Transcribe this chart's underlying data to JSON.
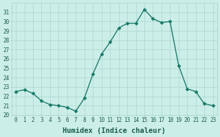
{
  "x": [
    0,
    1,
    2,
    3,
    4,
    5,
    6,
    7,
    8,
    9,
    10,
    11,
    12,
    13,
    14,
    15,
    16,
    17,
    18,
    19,
    20,
    21,
    22,
    23
  ],
  "y": [
    22.5,
    22.7,
    22.3,
    21.5,
    21.1,
    21.0,
    20.8,
    20.4,
    21.8,
    24.4,
    26.5,
    27.8,
    29.3,
    29.8,
    29.8,
    31.3,
    30.3,
    29.9,
    30.0,
    25.3,
    22.8,
    22.5,
    21.2,
    21.0
  ],
  "line_color": "#1a7a6a",
  "marker": "D",
  "markersize": 2.5,
  "linewidth": 1.0,
  "bg_color": "#cceee8",
  "grid_color": "#aad4ce",
  "xlabel": "Humidex (Indice chaleur)",
  "xlim": [
    -0.5,
    23.5
  ],
  "ylim": [
    20,
    32
  ],
  "yticks": [
    20,
    21,
    22,
    23,
    24,
    25,
    26,
    27,
    28,
    29,
    30,
    31
  ],
  "xticks": [
    0,
    1,
    2,
    3,
    4,
    5,
    6,
    7,
    8,
    9,
    10,
    11,
    12,
    13,
    14,
    15,
    16,
    17,
    18,
    19,
    20,
    21,
    22,
    23
  ],
  "tick_label_fontsize": 5.5,
  "xlabel_fontsize": 7.5,
  "tick_color": "#1a5c4a"
}
